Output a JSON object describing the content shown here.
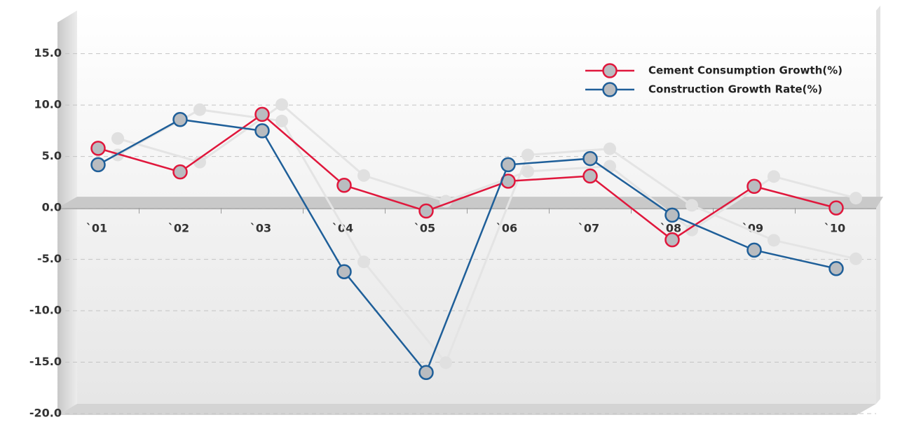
{
  "chart_data": {
    "type": "line",
    "categories": [
      "`01",
      "`02",
      "`03",
      "`04",
      "`05",
      "`06",
      "`07",
      "`08",
      "`09",
      "`10"
    ],
    "series": [
      {
        "name": "Cement Consumption Growth(%)",
        "color": "#e0173c",
        "values": [
          5.8,
          3.5,
          9.1,
          2.2,
          -0.3,
          2.6,
          3.1,
          -3.1,
          2.1,
          0.0
        ]
      },
      {
        "name": "Construction Growth Rate(%)",
        "color": "#1f5f99",
        "values": [
          4.2,
          8.6,
          7.5,
          -6.2,
          -16.0,
          4.2,
          4.8,
          -0.7,
          -4.1,
          -5.9
        ]
      }
    ],
    "ylim": [
      -20,
      18
    ],
    "yticks": [
      {
        "value": -20,
        "label": "-20.0"
      },
      {
        "value": -15,
        "label": "-15.0"
      },
      {
        "value": -10,
        "label": "-10.0"
      },
      {
        "value": -5,
        "label": "-5.0"
      },
      {
        "value": 0,
        "label": "0.0"
      },
      {
        "value": 5,
        "label": "5.0"
      },
      {
        "value": 10,
        "label": "10.0"
      },
      {
        "value": 15,
        "label": "15.0"
      }
    ],
    "grid": true,
    "legend": "top-right"
  }
}
